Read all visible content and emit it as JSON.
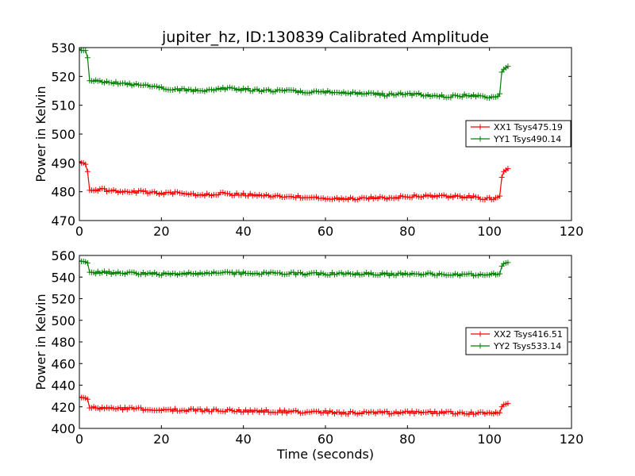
{
  "chart_data": [
    {
      "type": "line",
      "title": "jupiter_hz, ID:130839 Calibrated Amplitude",
      "xlabel": "",
      "ylabel": "Power in Kelvin",
      "xlim": [
        0,
        120
      ],
      "ylim": [
        470,
        530
      ],
      "xticks": [
        "0",
        "20",
        "40",
        "60",
        "80",
        "100",
        "120"
      ],
      "yticks": [
        "470",
        "480",
        "490",
        "500",
        "510",
        "520",
        "530"
      ],
      "legend_position": "center-right",
      "series": [
        {
          "name": "XX1 Tsys475.19",
          "color": "#ff0000",
          "marker": "plus",
          "x": [
            0,
            0.5,
            1,
            1.5,
            2,
            2.5,
            5,
            10,
            15,
            20,
            25,
            30,
            35,
            40,
            45,
            50,
            55,
            60,
            65,
            70,
            75,
            80,
            85,
            90,
            95,
            100,
            102,
            102.5,
            103,
            103.5,
            104,
            104.5
          ],
          "y": [
            490.5,
            490,
            490,
            489.5,
            487,
            480.5,
            480.8,
            479.8,
            480,
            479.5,
            479.5,
            478.8,
            479.3,
            479,
            478.8,
            478.5,
            478,
            477.8,
            477.5,
            477.8,
            477.8,
            478.3,
            478.5,
            478.3,
            478.2,
            477.5,
            478,
            478.5,
            485,
            487,
            487.5,
            488
          ]
        },
        {
          "name": "YY1 Tsys490.14",
          "color": "#008000",
          "marker": "plus",
          "x": [
            0,
            0.5,
            1,
            1.5,
            2,
            2.5,
            5,
            10,
            15,
            20,
            25,
            30,
            35,
            40,
            45,
            50,
            55,
            60,
            65,
            70,
            75,
            80,
            85,
            90,
            95,
            100,
            102,
            102.5,
            103,
            103.5,
            104,
            104.5
          ],
          "y": [
            529.5,
            529,
            529,
            529,
            526.5,
            518.5,
            518.3,
            517.5,
            517,
            516,
            515.5,
            515,
            516,
            515.5,
            515,
            515,
            514.5,
            514.5,
            514.5,
            514,
            513.5,
            514,
            513.5,
            513,
            513.5,
            513,
            513,
            514,
            521.5,
            522.5,
            523,
            523.5
          ]
        }
      ]
    },
    {
      "type": "line",
      "title": "",
      "xlabel": "Time (seconds)",
      "ylabel": "Power in Kelvin",
      "xlim": [
        0,
        120
      ],
      "ylim": [
        400,
        560
      ],
      "xticks": [
        "0",
        "20",
        "40",
        "60",
        "80",
        "100",
        "120"
      ],
      "yticks": [
        "400",
        "420",
        "440",
        "460",
        "480",
        "500",
        "520",
        "540",
        "560"
      ],
      "legend_position": "center-right",
      "series": [
        {
          "name": "XX2 Tsys416.51",
          "color": "#ff0000",
          "marker": "plus",
          "x": [
            0,
            0.5,
            1,
            1.5,
            2,
            2.5,
            5,
            10,
            15,
            20,
            25,
            30,
            35,
            40,
            45,
            50,
            55,
            60,
            65,
            70,
            75,
            80,
            85,
            90,
            95,
            100,
            102,
            102.5,
            103,
            103.5,
            104,
            104.5
          ],
          "y": [
            429,
            428.5,
            428.5,
            428,
            427,
            419,
            418.8,
            418,
            418,
            417,
            417,
            416.8,
            416.5,
            416.3,
            416,
            415.5,
            415.3,
            415,
            414.5,
            414.5,
            414.5,
            415,
            414.8,
            414.5,
            414.3,
            413.8,
            414,
            414.5,
            420,
            422,
            422.5,
            423
          ]
        },
        {
          "name": "YY2 Tsys533.14",
          "color": "#008000",
          "marker": "plus",
          "x": [
            0,
            0.5,
            1,
            1.5,
            2,
            2.5,
            5,
            10,
            15,
            20,
            25,
            30,
            35,
            40,
            45,
            50,
            55,
            60,
            65,
            70,
            75,
            80,
            85,
            90,
            95,
            100,
            102,
            102.5,
            103,
            103.5,
            104,
            104.5
          ],
          "y": [
            555,
            554.5,
            554.5,
            554,
            553,
            544.5,
            544.2,
            544,
            543.5,
            543,
            543,
            543,
            544,
            543.5,
            543.3,
            543.5,
            543,
            543,
            543,
            542.8,
            542.5,
            542.8,
            542.5,
            542.5,
            542.3,
            542.3,
            542.5,
            543,
            550,
            552.5,
            553,
            553.5
          ]
        }
      ]
    }
  ]
}
